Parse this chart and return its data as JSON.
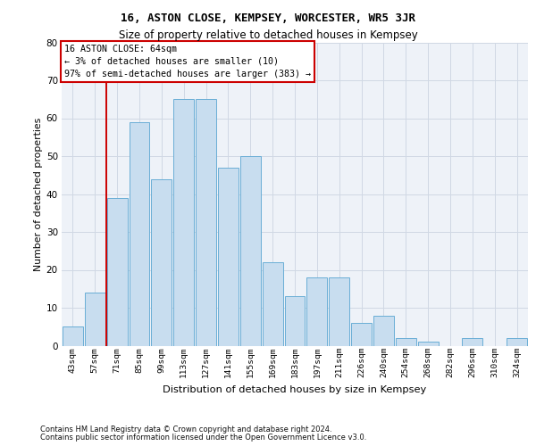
{
  "title": "16, ASTON CLOSE, KEMPSEY, WORCESTER, WR5 3JR",
  "subtitle": "Size of property relative to detached houses in Kempsey",
  "xlabel": "Distribution of detached houses by size in Kempsey",
  "ylabel": "Number of detached properties",
  "bar_labels": [
    "43sqm",
    "57sqm",
    "71sqm",
    "85sqm",
    "99sqm",
    "113sqm",
    "127sqm",
    "141sqm",
    "155sqm",
    "169sqm",
    "183sqm",
    "197sqm",
    "211sqm",
    "226sqm",
    "240sqm",
    "254sqm",
    "268sqm",
    "282sqm",
    "296sqm",
    "310sqm",
    "324sqm"
  ],
  "bar_values": [
    5,
    14,
    39,
    59,
    44,
    65,
    65,
    47,
    50,
    22,
    13,
    18,
    18,
    6,
    8,
    2,
    1,
    0,
    2,
    0,
    2
  ],
  "bar_color": "#c8ddef",
  "bar_edgecolor": "#6aaed6",
  "grid_color": "#d0d8e4",
  "background_color": "#eef2f8",
  "annotation_text": "16 ASTON CLOSE: 64sqm\n← 3% of detached houses are smaller (10)\n97% of semi-detached houses are larger (383) →",
  "annotation_edgecolor": "#cc0000",
  "vline_color": "#cc0000",
  "ylim": [
    0,
    80
  ],
  "yticks": [
    0,
    10,
    20,
    30,
    40,
    50,
    60,
    70,
    80
  ],
  "title_fontsize": 9,
  "subtitle_fontsize": 8.5,
  "footer_line1": "Contains HM Land Registry data © Crown copyright and database right 2024.",
  "footer_line2": "Contains public sector information licensed under the Open Government Licence v3.0."
}
